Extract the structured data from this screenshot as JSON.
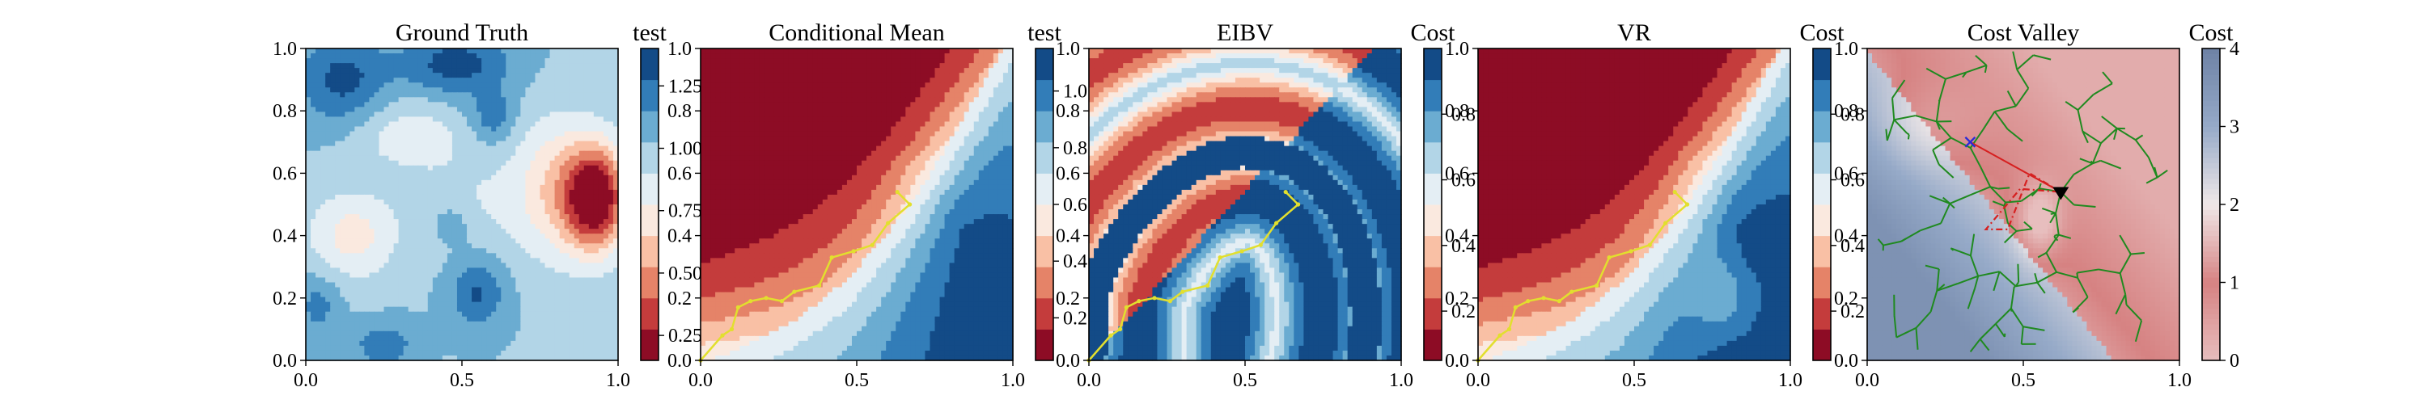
{
  "chart_data": [
    {
      "type": "heatmap",
      "title": "Ground Truth",
      "colorbar_label": "test",
      "colormap": "RdBu",
      "xlim": [
        0.0,
        1.0
      ],
      "ylim": [
        0.0,
        1.0
      ],
      "xticks": [
        "0.0",
        "0.5",
        "1.0"
      ],
      "yticks": [
        "0.0",
        "0.2",
        "0.4",
        "0.6",
        "0.8",
        "1.0"
      ],
      "colorbar_range": [
        0.15,
        1.4
      ],
      "colorbar_ticks": [
        "0.25",
        "0.50",
        "0.75",
        "1.00",
        "1.25"
      ],
      "colorbar_tick_values": [
        0.25,
        0.5,
        0.75,
        1.0,
        1.25
      ],
      "field": {
        "base": 1.02,
        "bumps": [
          {
            "x": 0.93,
            "y": 0.52,
            "amp": -0.85,
            "sx": 0.07,
            "sy": 0.12
          },
          {
            "x": 0.8,
            "y": 0.55,
            "amp": -0.35,
            "sx": 0.1,
            "sy": 0.16
          },
          {
            "x": 0.15,
            "y": 0.4,
            "amp": -0.3,
            "sx": 0.1,
            "sy": 0.1
          },
          {
            "x": 0.33,
            "y": 0.72,
            "amp": -0.2,
            "sx": 0.12,
            "sy": 0.08
          },
          {
            "x": 0.52,
            "y": 0.5,
            "amp": -0.12,
            "sx": 0.12,
            "sy": 0.12
          },
          {
            "x": 0.12,
            "y": 0.9,
            "amp": 0.3,
            "sx": 0.1,
            "sy": 0.1
          },
          {
            "x": 0.48,
            "y": 0.95,
            "amp": 0.32,
            "sx": 0.12,
            "sy": 0.07
          },
          {
            "x": 0.6,
            "y": 0.78,
            "amp": 0.22,
            "sx": 0.05,
            "sy": 0.06
          },
          {
            "x": 0.55,
            "y": 0.22,
            "amp": 0.28,
            "sx": 0.06,
            "sy": 0.08
          },
          {
            "x": 0.25,
            "y": 0.05,
            "amp": 0.22,
            "sx": 0.07,
            "sy": 0.05
          },
          {
            "x": 0.04,
            "y": 0.18,
            "amp": 0.18,
            "sx": 0.05,
            "sy": 0.07
          },
          {
            "x": 0.47,
            "y": 0.44,
            "amp": 0.15,
            "sx": 0.05,
            "sy": 0.05
          }
        ]
      },
      "path": []
    },
    {
      "type": "heatmap",
      "title": "Conditional Mean",
      "colorbar_label": "test",
      "colormap": "RdBu",
      "xlim": [
        0.0,
        1.0
      ],
      "ylim": [
        0.0,
        1.0
      ],
      "xticks": [
        "0.0",
        "0.5",
        "1.0"
      ],
      "yticks": [
        "0.0",
        "0.2",
        "0.4",
        "0.6",
        "0.8",
        "1.0"
      ],
      "colorbar_range": [
        0.05,
        1.15
      ],
      "colorbar_ticks": [
        "0.2",
        "0.4",
        "0.6",
        "0.8",
        "1.0"
      ],
      "colorbar_tick_values": [
        0.2,
        0.4,
        0.6,
        0.8,
        1.0
      ],
      "field": {
        "kind": "swirl",
        "high": 1.1,
        "low": 0.08,
        "lobe_x": 0.2,
        "lobe_y": 0.8,
        "lobe_amp": 0.0
      },
      "path": [
        [
          0.0,
          0.0
        ],
        [
          0.07,
          0.08
        ],
        [
          0.1,
          0.1
        ],
        [
          0.12,
          0.17
        ],
        [
          0.16,
          0.19
        ],
        [
          0.21,
          0.2
        ],
        [
          0.26,
          0.19
        ],
        [
          0.3,
          0.22
        ],
        [
          0.38,
          0.24
        ],
        [
          0.42,
          0.33
        ],
        [
          0.49,
          0.35
        ],
        [
          0.55,
          0.37
        ],
        [
          0.6,
          0.44
        ],
        [
          0.67,
          0.5
        ],
        [
          0.63,
          0.54
        ]
      ]
    },
    {
      "type": "heatmap",
      "title": "EIBV",
      "colorbar_label": "Cost",
      "colormap": "RdBu",
      "xlim": [
        0.0,
        1.0
      ],
      "ylim": [
        0.0,
        1.0
      ],
      "xticks": [
        "0.0",
        "0.5",
        "1.0"
      ],
      "yticks": [
        "0.0",
        "0.2",
        "0.4",
        "0.6",
        "0.8",
        "1.0"
      ],
      "colorbar_range": [
        0.05,
        1.0
      ],
      "colorbar_ticks": [
        "0.2",
        "0.4",
        "0.6",
        "0.8"
      ],
      "colorbar_tick_values": [
        0.2,
        0.4,
        0.6,
        0.8
      ],
      "field": {
        "kind": "band",
        "low": 0.06,
        "high": 0.98
      },
      "path": [
        [
          0.0,
          0.0
        ],
        [
          0.07,
          0.08
        ],
        [
          0.1,
          0.1
        ],
        [
          0.12,
          0.17
        ],
        [
          0.16,
          0.19
        ],
        [
          0.21,
          0.2
        ],
        [
          0.26,
          0.19
        ],
        [
          0.3,
          0.22
        ],
        [
          0.38,
          0.24
        ],
        [
          0.42,
          0.33
        ],
        [
          0.49,
          0.35
        ],
        [
          0.55,
          0.37
        ],
        [
          0.6,
          0.44
        ],
        [
          0.67,
          0.5
        ],
        [
          0.63,
          0.54
        ]
      ]
    },
    {
      "type": "heatmap",
      "title": "VR",
      "colorbar_label": "Cost",
      "colormap": "RdBu",
      "xlim": [
        0.0,
        1.0
      ],
      "ylim": [
        0.0,
        1.0
      ],
      "xticks": [
        "0.0",
        "0.5",
        "1.0"
      ],
      "yticks": [
        "0.0",
        "0.2",
        "0.4",
        "0.6",
        "0.8",
        "1.0"
      ],
      "colorbar_range": [
        0.05,
        1.0
      ],
      "colorbar_ticks": [
        "0.2",
        "0.4",
        "0.6",
        "0.8"
      ],
      "colorbar_tick_values": [
        0.2,
        0.4,
        0.6,
        0.8
      ],
      "field": {
        "kind": "swirl",
        "high": 0.98,
        "low": 0.06,
        "lobe_x": 0.22,
        "lobe_y": 0.78,
        "lobe_amp": -0.25,
        "blob_x": 0.8,
        "blob_y": 0.2,
        "blob_amp": -0.18
      },
      "path": [
        [
          0.0,
          0.0
        ],
        [
          0.07,
          0.08
        ],
        [
          0.1,
          0.1
        ],
        [
          0.12,
          0.17
        ],
        [
          0.16,
          0.19
        ],
        [
          0.21,
          0.2
        ],
        [
          0.26,
          0.19
        ],
        [
          0.3,
          0.22
        ],
        [
          0.38,
          0.24
        ],
        [
          0.42,
          0.33
        ],
        [
          0.49,
          0.35
        ],
        [
          0.55,
          0.37
        ],
        [
          0.6,
          0.44
        ],
        [
          0.67,
          0.5
        ],
        [
          0.63,
          0.54
        ]
      ]
    },
    {
      "type": "heatmap",
      "title": "Cost Valley",
      "colorbar_label": "Cost",
      "colormap": "sequential-red-to-blue",
      "xlim": [
        0.0,
        1.0
      ],
      "ylim": [
        0.0,
        1.0
      ],
      "xticks": [
        "0.0",
        "0.5",
        "1.0"
      ],
      "yticks": [
        "0.0",
        "0.2",
        "0.4",
        "0.6",
        "0.8",
        "1.0"
      ],
      "colorbar_range": [
        0,
        4
      ],
      "colorbar_ticks": [
        "0",
        "1",
        "2",
        "3",
        "4"
      ],
      "colorbar_tick_values": [
        0,
        1,
        2,
        3,
        4
      ],
      "field": {
        "kind": "valley"
      },
      "current_location": [
        0.62,
        0.54
      ],
      "waypoint_marker": [
        0.33,
        0.7
      ],
      "tree_color": "#1f8a1f",
      "path_color": "#d62020",
      "polygon": [
        [
          0.62,
          0.54
        ],
        [
          0.52,
          0.6
        ],
        [
          0.45,
          0.42
        ],
        [
          0.38,
          0.42
        ],
        [
          0.49,
          0.55
        ],
        [
          0.62,
          0.54
        ]
      ]
    }
  ]
}
